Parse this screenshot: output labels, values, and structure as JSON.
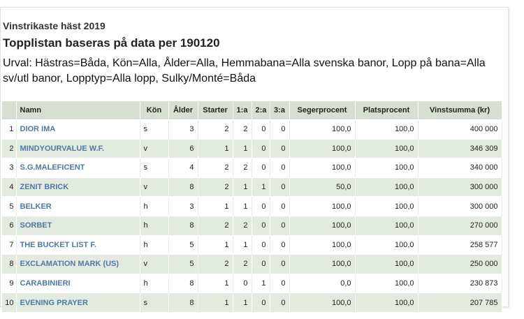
{
  "header": {
    "title": "Vinstrikaste häst 2019",
    "subtitle": "Topplistan baseras på data per 190120",
    "filter": "Urval: Hästras=Båda, Kön=Alla, Ålder=Alla, Hemmabana=Alla svenska banor, Lopp på bana=Alla sv/utl banor, Lopptyp=Alla lopp, Sulky/Monté=Båda"
  },
  "table": {
    "columns": {
      "rank": "",
      "name": "Namn",
      "gender": "Kön",
      "age": "Ålder",
      "starts": "Starter",
      "first": "1:a",
      "second": "2:a",
      "third": "3:a",
      "win_pct": "Segerprocent",
      "place_pct": "Platsprocent",
      "earnings": "Vinstsumma (kr)"
    },
    "rows": [
      {
        "rank": "1",
        "name": "DIOR IMA",
        "gender": "s",
        "age": "3",
        "starts": "2",
        "first": "2",
        "second": "0",
        "third": "0",
        "win_pct": "100,0",
        "place_pct": "100,0",
        "earnings": "400 000"
      },
      {
        "rank": "2",
        "name": "MINDYOURVALUE W.F.",
        "gender": "v",
        "age": "6",
        "starts": "1",
        "first": "1",
        "second": "0",
        "third": "0",
        "win_pct": "100,0",
        "place_pct": "100,0",
        "earnings": "346 309"
      },
      {
        "rank": "3",
        "name": "S.G.MALEFICENT",
        "gender": "s",
        "age": "4",
        "starts": "2",
        "first": "2",
        "second": "0",
        "third": "0",
        "win_pct": "100,0",
        "place_pct": "100,0",
        "earnings": "340 000"
      },
      {
        "rank": "4",
        "name": "ZENIT BRICK",
        "gender": "v",
        "age": "8",
        "starts": "2",
        "first": "1",
        "second": "1",
        "third": "0",
        "win_pct": "50,0",
        "place_pct": "100,0",
        "earnings": "300 000"
      },
      {
        "rank": "5",
        "name": "BELKER",
        "gender": "h",
        "age": "3",
        "starts": "1",
        "first": "1",
        "second": "0",
        "third": "0",
        "win_pct": "100,0",
        "place_pct": "100,0",
        "earnings": "300 000"
      },
      {
        "rank": "6",
        "name": "SORBET",
        "gender": "h",
        "age": "8",
        "starts": "2",
        "first": "2",
        "second": "0",
        "third": "0",
        "win_pct": "100,0",
        "place_pct": "100,0",
        "earnings": "270 000"
      },
      {
        "rank": "7",
        "name": "THE BUCKET LIST F.",
        "gender": "h",
        "age": "5",
        "starts": "1",
        "first": "1",
        "second": "0",
        "third": "0",
        "win_pct": "100,0",
        "place_pct": "100,0",
        "earnings": "258 577"
      },
      {
        "rank": "8",
        "name": "EXCLAMATION MARK (US)",
        "gender": "v",
        "age": "5",
        "starts": "2",
        "first": "2",
        "second": "0",
        "third": "0",
        "win_pct": "100,0",
        "place_pct": "100,0",
        "earnings": "250 000"
      },
      {
        "rank": "9",
        "name": "CARABINIERI",
        "gender": "h",
        "age": "8",
        "starts": "1",
        "first": "0",
        "second": "1",
        "third": "0",
        "win_pct": "0,0",
        "place_pct": "100,0",
        "earnings": "230 873"
      },
      {
        "rank": "10",
        "name": "EVENING PRAYER",
        "gender": "s",
        "age": "8",
        "starts": "1",
        "first": "1",
        "second": "0",
        "third": "0",
        "win_pct": "100,0",
        "place_pct": "100,0",
        "earnings": "207 785"
      }
    ]
  },
  "colors": {
    "header_bg": "#d6dfd2",
    "row_alt_bg": "#e3eadf",
    "link": "#4d79a3"
  }
}
